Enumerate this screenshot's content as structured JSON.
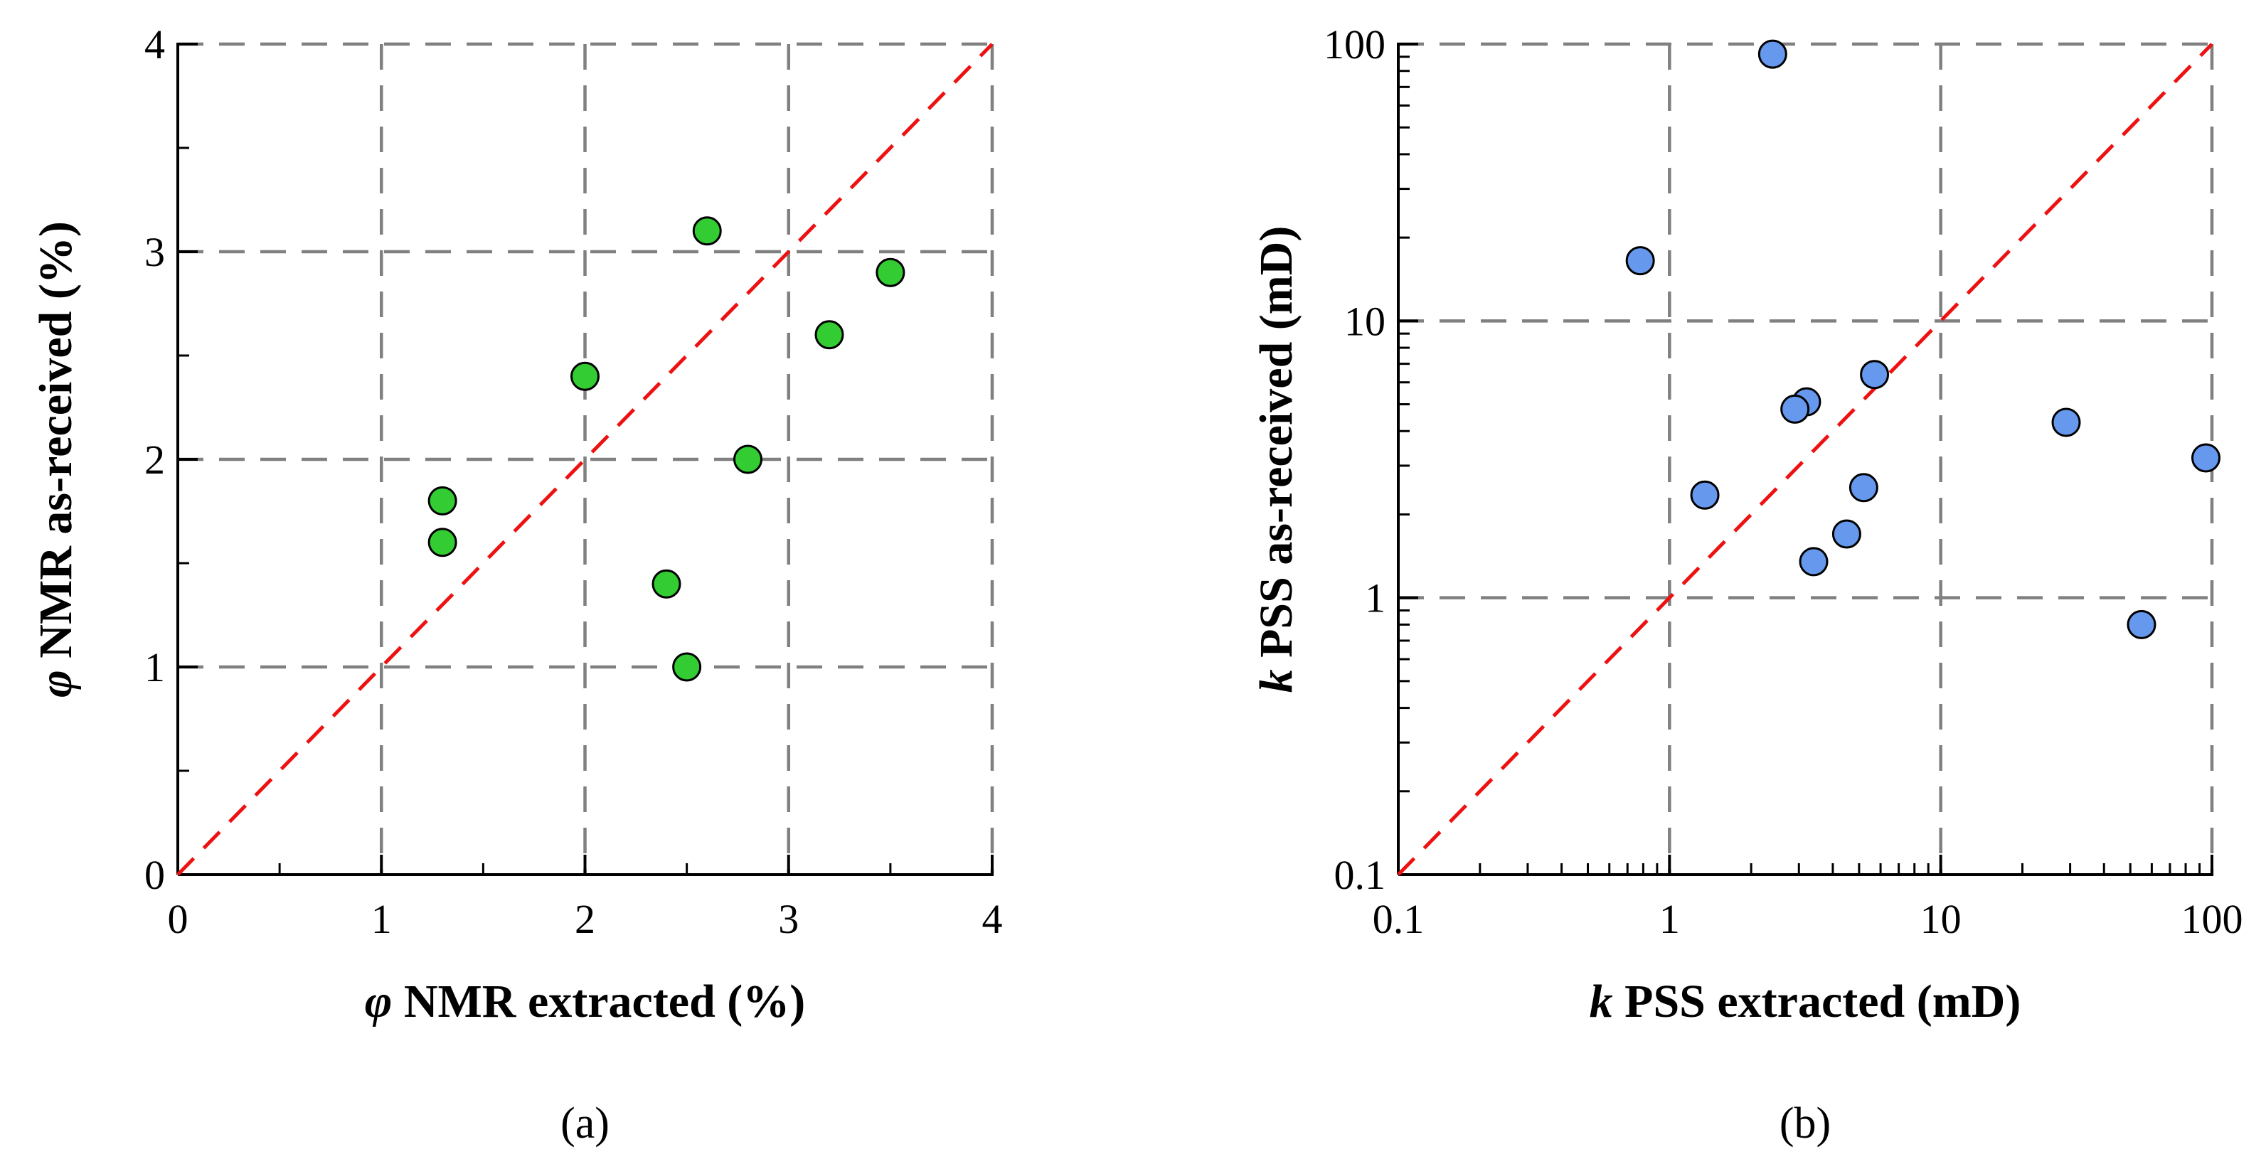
{
  "chart_data": [
    {
      "type": "scatter",
      "panel_label": "(a)",
      "xlabel": {
        "symbol": "φ",
        "text": " NMR extracted (%)"
      },
      "ylabel": {
        "symbol": "φ",
        "text": " NMR as-received (%)"
      },
      "xlim": [
        0,
        4
      ],
      "ylim": [
        0,
        4
      ],
      "x_ticks": [
        "0",
        "1",
        "2",
        "3",
        "4"
      ],
      "y_ticks": [
        "0",
        "1",
        "2",
        "3",
        "4"
      ],
      "scale": "linear",
      "grid": true,
      "reference_line": "y = x",
      "marker_color": "#33cc33",
      "line_color": "#ee1111",
      "points": [
        {
          "x": 1.3,
          "y": 1.8
        },
        {
          "x": 1.3,
          "y": 1.6
        },
        {
          "x": 2.0,
          "y": 2.4
        },
        {
          "x": 2.4,
          "y": 1.4
        },
        {
          "x": 2.5,
          "y": 1.0
        },
        {
          "x": 2.6,
          "y": 3.1
        },
        {
          "x": 2.8,
          "y": 2.0
        },
        {
          "x": 3.2,
          "y": 2.6
        },
        {
          "x": 3.5,
          "y": 2.9
        }
      ]
    },
    {
      "type": "scatter",
      "panel_label": "(b)",
      "xlabel": {
        "symbol": "k",
        "text": " PSS extracted (mD)"
      },
      "ylabel": {
        "symbol": "k",
        "text": " PSS as-received (mD)"
      },
      "xlim": [
        0.1,
        100
      ],
      "ylim": [
        0.1,
        100
      ],
      "x_ticks": [
        "0.1",
        "1",
        "10",
        "100"
      ],
      "y_ticks": [
        "0.1",
        "1",
        "10",
        "100"
      ],
      "scale": "log",
      "grid": true,
      "reference_line": "y = x",
      "marker_color": "#6699ee",
      "line_color": "#ee1111",
      "points": [
        {
          "x": 2.4,
          "y": 92
        },
        {
          "x": 0.78,
          "y": 16.5
        },
        {
          "x": 5.7,
          "y": 6.4
        },
        {
          "x": 3.2,
          "y": 5.1
        },
        {
          "x": 2.9,
          "y": 4.8
        },
        {
          "x": 29,
          "y": 4.3
        },
        {
          "x": 95,
          "y": 3.2
        },
        {
          "x": 5.2,
          "y": 2.5
        },
        {
          "x": 1.35,
          "y": 2.35
        },
        {
          "x": 4.5,
          "y": 1.7
        },
        {
          "x": 3.4,
          "y": 1.35
        },
        {
          "x": 55,
          "y": 0.8
        }
      ]
    }
  ]
}
